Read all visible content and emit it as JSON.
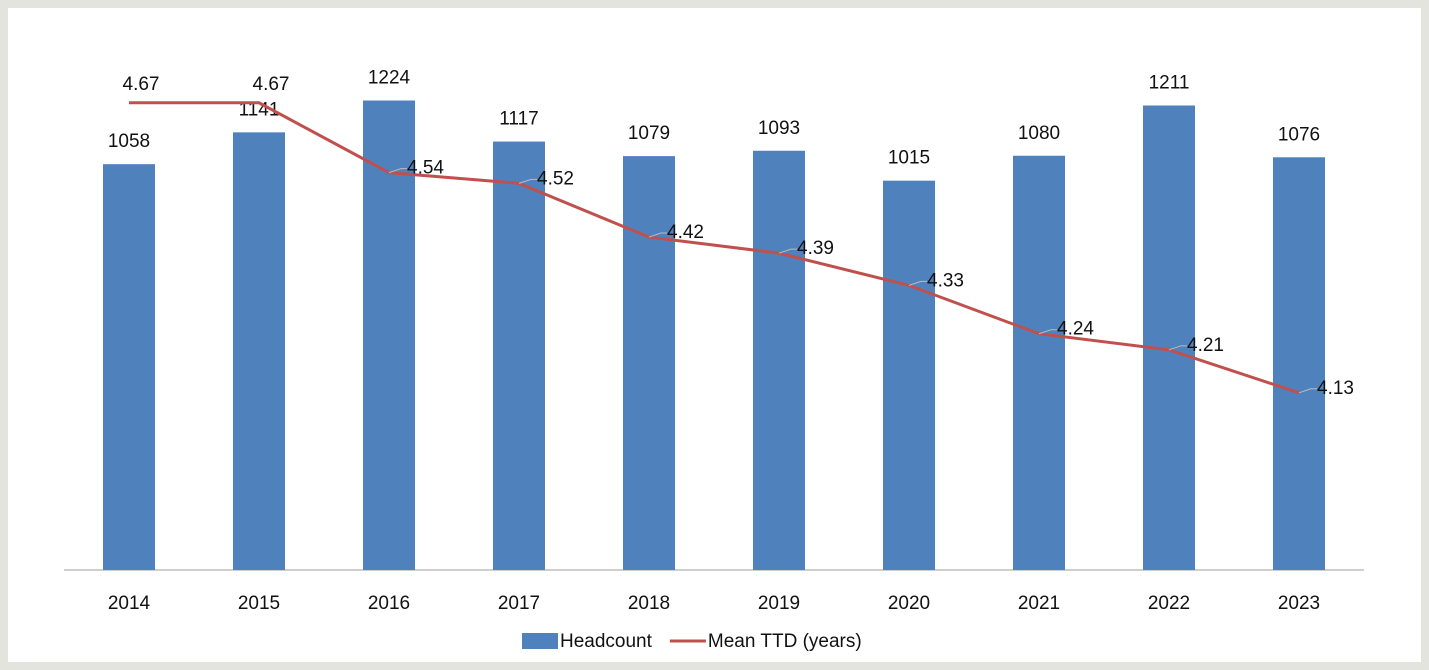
{
  "chart_data": {
    "type": "bar_line",
    "categories": [
      "2014",
      "2015",
      "2016",
      "2017",
      "2018",
      "2019",
      "2020",
      "2021",
      "2022",
      "2023"
    ],
    "series": [
      {
        "name": "Headcount",
        "type": "bar",
        "color": "#4f81bd",
        "values": [
          1058,
          1141,
          1224,
          1117,
          1079,
          1093,
          1015,
          1080,
          1211,
          1076
        ]
      },
      {
        "name": "Mean TTD (years)",
        "type": "line",
        "axis": "y2",
        "color": "#c0504d",
        "values": [
          4.67,
          4.67,
          4.54,
          4.52,
          4.42,
          4.39,
          4.33,
          4.24,
          4.21,
          4.13
        ]
      }
    ],
    "ylim": [
      0,
      1400
    ],
    "y2lim": [
      3.8,
      4.8
    ],
    "grid": false,
    "legend": "bottom"
  }
}
